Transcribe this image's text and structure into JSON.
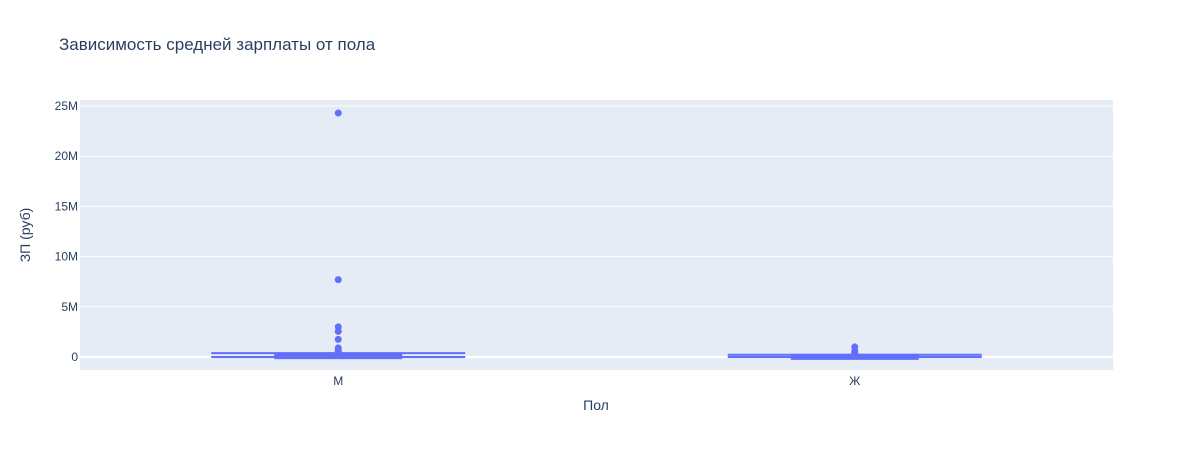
{
  "chart_data": {
    "type": "box",
    "title": "Зависимость средней зарплаты от пола",
    "xlabel": "Пол",
    "ylabel": "ЗП (руб)",
    "categories": [
      "М",
      "Ж"
    ],
    "ylim": [
      -1300000,
      25600000
    ],
    "y_ticks": [
      0,
      5000000,
      10000000,
      15000000,
      20000000,
      25000000
    ],
    "y_tick_labels": [
      "0",
      "5M",
      "10M",
      "15M",
      "20M",
      "25M"
    ],
    "grid": true,
    "colors": {
      "plot_bg": "#e5ecf6",
      "grid": "#ffffff",
      "box": "#636efa",
      "text": "#2a3f5f"
    },
    "boxes": [
      {
        "category": "М",
        "min": 0,
        "q1": 40000,
        "median": 90000,
        "q3": 180000,
        "max": 380000,
        "outliers": [
          24300000,
          7700000,
          3000000,
          2550000,
          1750000,
          900000,
          750000,
          600000,
          500000,
          430000
        ]
      },
      {
        "category": "Ж",
        "min": 0,
        "q1": 30000,
        "median": 60000,
        "q3": 110000,
        "max": 220000,
        "outliers": [
          1000000,
          600000,
          450000,
          350000,
          280000
        ]
      }
    ]
  }
}
